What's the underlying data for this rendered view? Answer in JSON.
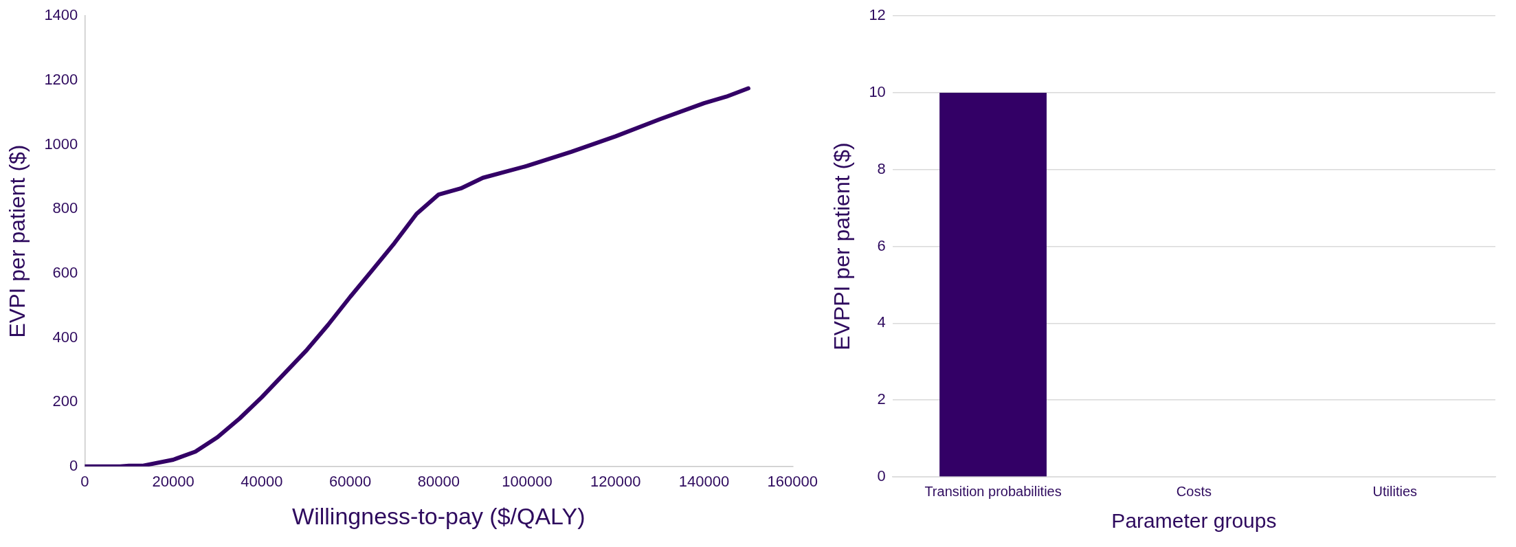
{
  "chart_data": [
    {
      "type": "line",
      "xlabel": "Willingness-to-pay ($/QALY)",
      "ylabel": "EVPI per patient ($)",
      "xlim": [
        0,
        160000
      ],
      "xticks": [
        0,
        20000,
        40000,
        60000,
        80000,
        100000,
        120000,
        140000,
        160000
      ],
      "ylim": [
        0,
        1400
      ],
      "yticks": [
        0,
        200,
        400,
        600,
        800,
        1000,
        1200,
        1400
      ],
      "grid": false,
      "legend": false,
      "marker": "none",
      "line_style": "solid",
      "x": [
        0,
        8000,
        10000,
        13000,
        20000,
        25000,
        30000,
        35000,
        40000,
        50000,
        55000,
        60000,
        65000,
        70000,
        75000,
        80000,
        85000,
        90000,
        100000,
        110000,
        120000,
        130000,
        140000,
        145000,
        150000
      ],
      "series": [
        {
          "color": "#330066",
          "values": [
            0,
            0,
            2,
            2,
            21,
            46,
            91,
            149,
            215,
            359,
            440,
            527,
            610,
            694,
            785,
            845,
            864,
            897,
            934,
            978,
            1026,
            1079,
            1129,
            1149,
            1175
          ]
        }
      ]
    },
    {
      "type": "bar",
      "xlabel": "Parameter groups",
      "ylabel": "EVPPI per patient ($)",
      "categories": [
        "Transition probabilities",
        "Costs",
        "Utilities"
      ],
      "ylim": [
        0,
        12
      ],
      "yticks": [
        0,
        2,
        4,
        6,
        8,
        10,
        12
      ],
      "grid": "y",
      "legend": false,
      "series": [
        {
          "color": "#330066",
          "values": [
            10,
            0,
            0
          ]
        }
      ]
    }
  ]
}
